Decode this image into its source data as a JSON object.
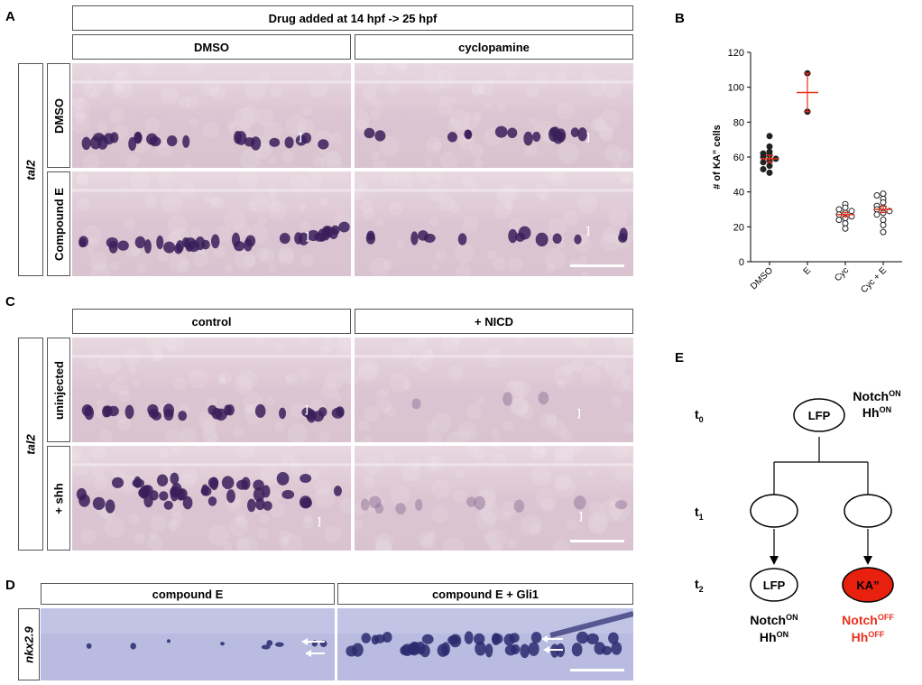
{
  "panels": {
    "A": {
      "letter": "A",
      "top_header": "Drug added at 14 hpf -> 25 hpf",
      "col_headers": [
        "DMSO",
        "cyclopamine"
      ],
      "row_headers": [
        "DMSO",
        "Compound E"
      ],
      "gene_label": "tal2"
    },
    "B": {
      "letter": "B"
    },
    "C": {
      "letter": "C",
      "col_headers": [
        "control",
        "+ NICD"
      ],
      "row_headers": [
        "uninjected",
        "+ shh"
      ],
      "gene_label": "tal2"
    },
    "D": {
      "letter": "D",
      "col_headers": [
        "compound E",
        "compound E + Gli1"
      ],
      "gene_label": "nkx2.9"
    },
    "E": {
      "letter": "E",
      "times": {
        "t0": "t",
        "t0_sub": "0",
        "t1": "t",
        "t1_sub": "1",
        "t2": "t",
        "t2_sub": "2"
      },
      "top_cell": "LFP",
      "top_signal": {
        "notch": "Notch",
        "notch_sup": "ON",
        "hh": "Hh",
        "hh_sup": "ON"
      },
      "left_cell": "LFP",
      "left_signal": {
        "notch": "Notch",
        "notch_sup": "ON",
        "hh": "Hh",
        "hh_sup": "ON"
      },
      "right_cell": "KA”",
      "right_signal": {
        "notch": "Notch",
        "notch_sup": "OFF",
        "hh": "Hh",
        "hh_sup": "OFF"
      },
      "colors": {
        "ka_fill": "#e8200e",
        "off_text": "#e8301c"
      }
    }
  },
  "chart_data": {
    "type": "scatter",
    "ylabel": "# of KA” cells",
    "ylim": [
      0,
      120
    ],
    "yticks": [
      0,
      20,
      40,
      60,
      80,
      100,
      120
    ],
    "categories": [
      "DMSO",
      "E",
      "Cyc",
      "Cyc + E"
    ],
    "series": [
      {
        "category": "DMSO",
        "filled": true,
        "values": [
          72,
          66,
          63,
          62,
          61,
          60,
          59,
          58,
          57,
          55,
          53,
          51
        ],
        "mean": 59,
        "sem": 2
      },
      {
        "category": "E",
        "filled": true,
        "values": [
          108,
          86
        ],
        "mean": 97,
        "sem": 11
      },
      {
        "category": "Cyc",
        "filled": false,
        "values": [
          33,
          31,
          30,
          29,
          28,
          27,
          26,
          25,
          24,
          22,
          19
        ],
        "mean": 27,
        "sem": 1.3
      },
      {
        "category": "Cyc + E",
        "filled": false,
        "values": [
          39,
          38,
          36,
          34,
          32,
          31,
          30,
          29,
          28,
          27,
          24,
          21,
          17
        ],
        "mean": 30,
        "sem": 1.8
      }
    ],
    "colors": {
      "mean_line": "#e8301c",
      "points": "#222222"
    }
  }
}
